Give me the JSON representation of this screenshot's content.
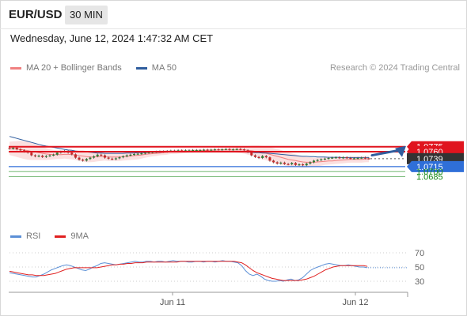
{
  "header": {
    "symbol": "EUR/USD",
    "timeframe": "30 MIN",
    "datetime": "Wednesday, June 12, 2024 1:47:32 AM CET",
    "copyright": "Research © 2024 Trading Central"
  },
  "legend_main": [
    {
      "label": "MA 20 + Bollinger Bands",
      "color": "#f08080"
    },
    {
      "label": "MA 50",
      "color": "#2f5d9e"
    }
  ],
  "legend_rsi": [
    {
      "label": "RSI",
      "color": "#5b8fd6"
    },
    {
      "label": "9MA",
      "color": "#e02020"
    }
  ],
  "colors": {
    "bull": "#2e7d32",
    "bear": "#c62828",
    "resistance": "#e0141e",
    "support": "#2f6fd8",
    "target": "#1a8a1a",
    "arrow": "#2f5d9e",
    "last_price_bg": "#333333"
  },
  "chart_data": [
    {
      "type": "candlestick",
      "title": "EUR/USD 30 MIN",
      "x_ticks": [
        "Jun 11",
        "Jun 12"
      ],
      "ylim": [
        1.0675,
        1.0795
      ],
      "last_price": 1.0739,
      "levels": [
        {
          "value": 1.0775,
          "label": "1.0775",
          "kind": "resistance"
        },
        {
          "value": 1.076,
          "label": "1.0760",
          "kind": "resistance"
        },
        {
          "value": 1.0739,
          "label": "1.0739",
          "kind": "last"
        },
        {
          "value": 1.0715,
          "label": "1.0715",
          "kind": "support"
        },
        {
          "value": 1.07,
          "label": "1.0700",
          "kind": "target"
        },
        {
          "value": 1.0685,
          "label": "1.0685",
          "kind": "target"
        }
      ],
      "forecast_arrow": {
        "from": 1.0742,
        "to": 1.0775
      },
      "close": [
        1.0769,
        1.0772,
        1.0767,
        1.0764,
        1.076,
        1.0757,
        1.0749,
        1.0746,
        1.0748,
        1.0744,
        1.0747,
        1.0749,
        1.0751,
        1.0757,
        1.076,
        1.0762,
        1.0757,
        1.0752,
        1.0742,
        1.0736,
        1.0733,
        1.0738,
        1.0742,
        1.0746,
        1.0751,
        1.0749,
        1.0742,
        1.0739,
        1.0737,
        1.074,
        1.0743,
        1.0746,
        1.0749,
        1.0751,
        1.0753,
        1.0754,
        1.0755,
        1.0757,
        1.0758,
        1.0759,
        1.076,
        1.0761,
        1.076,
        1.0762,
        1.0763,
        1.0762,
        1.0764,
        1.0763,
        1.0764,
        1.0764,
        1.0765,
        1.0765,
        1.0765,
        1.0766,
        1.0765,
        1.0766,
        1.0767,
        1.0766,
        1.0767,
        1.0768,
        1.0766,
        1.0767,
        1.0768,
        1.0767,
        1.0764,
        1.0759,
        1.0749,
        1.0744,
        1.0741,
        1.0747,
        1.0743,
        1.0733,
        1.0728,
        1.0724,
        1.0727,
        1.0723,
        1.0722,
        1.0726,
        1.072,
        1.0722,
        1.0719,
        1.0724,
        1.0728,
        1.0733,
        1.0735,
        1.0737,
        1.0739,
        1.0741,
        1.0742,
        1.0743,
        1.0741,
        1.0743,
        1.0741,
        1.074,
        1.074,
        1.0741,
        1.0742,
        1.074,
        1.0739
      ],
      "ma20": [
        1.077,
        1.0769,
        1.0768,
        1.0767,
        1.0765,
        1.0763,
        1.0761,
        1.0759,
        1.0757,
        1.0755,
        1.0753,
        1.0752,
        1.0751,
        1.0751,
        1.0751,
        1.0752,
        1.0752,
        1.0751,
        1.075,
        1.0748,
        1.0747,
        1.0745,
        1.0744,
        1.0744,
        1.0745,
        1.0745,
        1.0745,
        1.0744,
        1.0744,
        1.0744,
        1.0744,
        1.0745,
        1.0746,
        1.0747,
        1.0748,
        1.0749,
        1.075,
        1.0752,
        1.0753,
        1.0754,
        1.0755,
        1.0756,
        1.0757,
        1.0758,
        1.0759,
        1.0759,
        1.076,
        1.0761,
        1.0761,
        1.0762,
        1.0762,
        1.0763,
        1.0763,
        1.0763,
        1.0764,
        1.0764,
        1.0764,
        1.0765,
        1.0765,
        1.0765,
        1.0765,
        1.0765,
        1.0765,
        1.0765,
        1.0765,
        1.0764,
        1.0763,
        1.0761,
        1.0759,
        1.0757,
        1.0755,
        1.0752,
        1.0749,
        1.0746,
        1.0743,
        1.074,
        1.0737,
        1.0735,
        1.0733,
        1.0731,
        1.0729,
        1.0728,
        1.0728,
        1.0728,
        1.0729,
        1.073,
        1.0731,
        1.0732,
        1.0732,
        1.0733,
        1.0734,
        1.0735,
        1.0736,
        1.0737,
        1.0737,
        1.0737,
        1.0737,
        1.0738,
        1.0738
      ],
      "ma50": [
        1.0806,
        1.0803,
        1.08,
        1.0797,
        1.0794,
        1.0791,
        1.0788,
        1.0785,
        1.0782,
        1.0779,
        1.0777,
        1.0775,
        1.0773,
        1.0771,
        1.0769,
        1.0767,
        1.0765,
        1.0764,
        1.0762,
        1.0761,
        1.076,
        1.0759,
        1.0758,
        1.0757,
        1.0756,
        1.0756,
        1.0755,
        1.0755,
        1.0755,
        1.0755,
        1.0755,
        1.0755,
        1.0756,
        1.0756,
        1.0756,
        1.0757,
        1.0757,
        1.0757,
        1.0758,
        1.0758,
        1.0758,
        1.0758,
        1.0759,
        1.0759,
        1.0759,
        1.0759,
        1.0759,
        1.0759,
        1.0759,
        1.0759,
        1.0759,
        1.0759,
        1.0759,
        1.0759,
        1.0759,
        1.0759,
        1.0759,
        1.0759,
        1.0759,
        1.0759,
        1.0759,
        1.0759,
        1.0759,
        1.0759,
        1.0759,
        1.0758,
        1.0758,
        1.0757,
        1.0757,
        1.0756,
        1.0756,
        1.0755,
        1.0754,
        1.0753,
        1.0752,
        1.0751,
        1.075,
        1.0749,
        1.0748,
        1.0747,
        1.0746,
        1.0746,
        1.0745,
        1.0745,
        1.0744,
        1.0744,
        1.0744,
        1.0743,
        1.0743,
        1.0743,
        1.0743,
        1.0742,
        1.0742,
        1.0742,
        1.0742,
        1.0742,
        1.0742,
        1.0742,
        1.0742
      ],
      "bb_width": [
        0.002,
        0.0022,
        0.0024,
        0.0026,
        0.0027,
        0.0027,
        0.0026,
        0.0024,
        0.0022,
        0.002,
        0.0018,
        0.0016,
        0.0014,
        0.0013,
        0.0013,
        0.0013,
        0.0014,
        0.0014,
        0.0015,
        0.0016,
        0.0017,
        0.0017,
        0.0016,
        0.0015,
        0.0014,
        0.0013,
        0.0012,
        0.0012,
        0.0012,
        0.0012,
        0.0012,
        0.0012,
        0.0012,
        0.0012,
        0.0012,
        0.0012,
        0.0011,
        0.001,
        0.0009,
        0.0008,
        0.0008,
        0.0007,
        0.0007,
        0.0007,
        0.0006,
        0.0006,
        0.0006,
        0.0006,
        0.0005,
        0.0005,
        0.0005,
        0.0005,
        0.0005,
        0.0005,
        0.0005,
        0.0005,
        0.0005,
        0.0005,
        0.0005,
        0.0005,
        0.0006,
        0.0007,
        0.0008,
        0.0009,
        0.0011,
        0.0013,
        0.0015,
        0.0017,
        0.0019,
        0.002,
        0.0021,
        0.0022,
        0.0022,
        0.0022,
        0.0022,
        0.0021,
        0.0021,
        0.002,
        0.0019,
        0.0018,
        0.0017,
        0.0016,
        0.0015,
        0.0014,
        0.0013,
        0.0012,
        0.0011,
        0.0011,
        0.001,
        0.001,
        0.001,
        0.001,
        0.001,
        0.001,
        0.001,
        0.001,
        0.001,
        0.001,
        0.001
      ]
    },
    {
      "type": "line",
      "title": "RSI",
      "y_ticks": [
        70,
        50,
        30
      ],
      "ylim": [
        15,
        85
      ],
      "series": [
        {
          "name": "RSI",
          "values": [
            42,
            41,
            40,
            39,
            38,
            37,
            36,
            36,
            38,
            40,
            43,
            46,
            48,
            50,
            52,
            53,
            52,
            50,
            48,
            46,
            45,
            47,
            50,
            52,
            55,
            56,
            55,
            54,
            53,
            54,
            55,
            56,
            57,
            58,
            57,
            57,
            58,
            58,
            57,
            58,
            58,
            57,
            58,
            59,
            58,
            58,
            58,
            57,
            57,
            58,
            58,
            57,
            58,
            58,
            57,
            58,
            59,
            58,
            58,
            57,
            56,
            52,
            45,
            40,
            38,
            40,
            37,
            33,
            31,
            30,
            30,
            31,
            30,
            32,
            33,
            31,
            32,
            35,
            40,
            45,
            48,
            50,
            52,
            54,
            55,
            54,
            53,
            52,
            52,
            53,
            52,
            51,
            50,
            50,
            49
          ]
        },
        {
          "name": "9MA",
          "values": [
            44,
            43,
            42,
            41,
            40,
            39,
            39,
            38,
            38,
            38,
            39,
            40,
            41,
            43,
            45,
            47,
            48,
            49,
            49,
            49,
            49,
            49,
            49,
            49,
            50,
            51,
            52,
            53,
            53,
            54,
            54,
            55,
            55,
            56,
            56,
            56,
            57,
            57,
            57,
            57,
            57,
            57,
            57,
            57,
            57,
            58,
            58,
            58,
            58,
            58,
            58,
            58,
            58,
            58,
            58,
            58,
            58,
            58,
            58,
            58,
            57,
            56,
            53,
            49,
            45,
            42,
            40,
            38,
            36,
            34,
            33,
            32,
            31,
            31,
            31,
            31,
            31,
            32,
            33,
            35,
            37,
            40,
            43,
            46,
            48,
            50,
            51,
            52,
            52,
            52,
            52,
            52,
            52,
            52,
            51
          ]
        }
      ]
    }
  ]
}
